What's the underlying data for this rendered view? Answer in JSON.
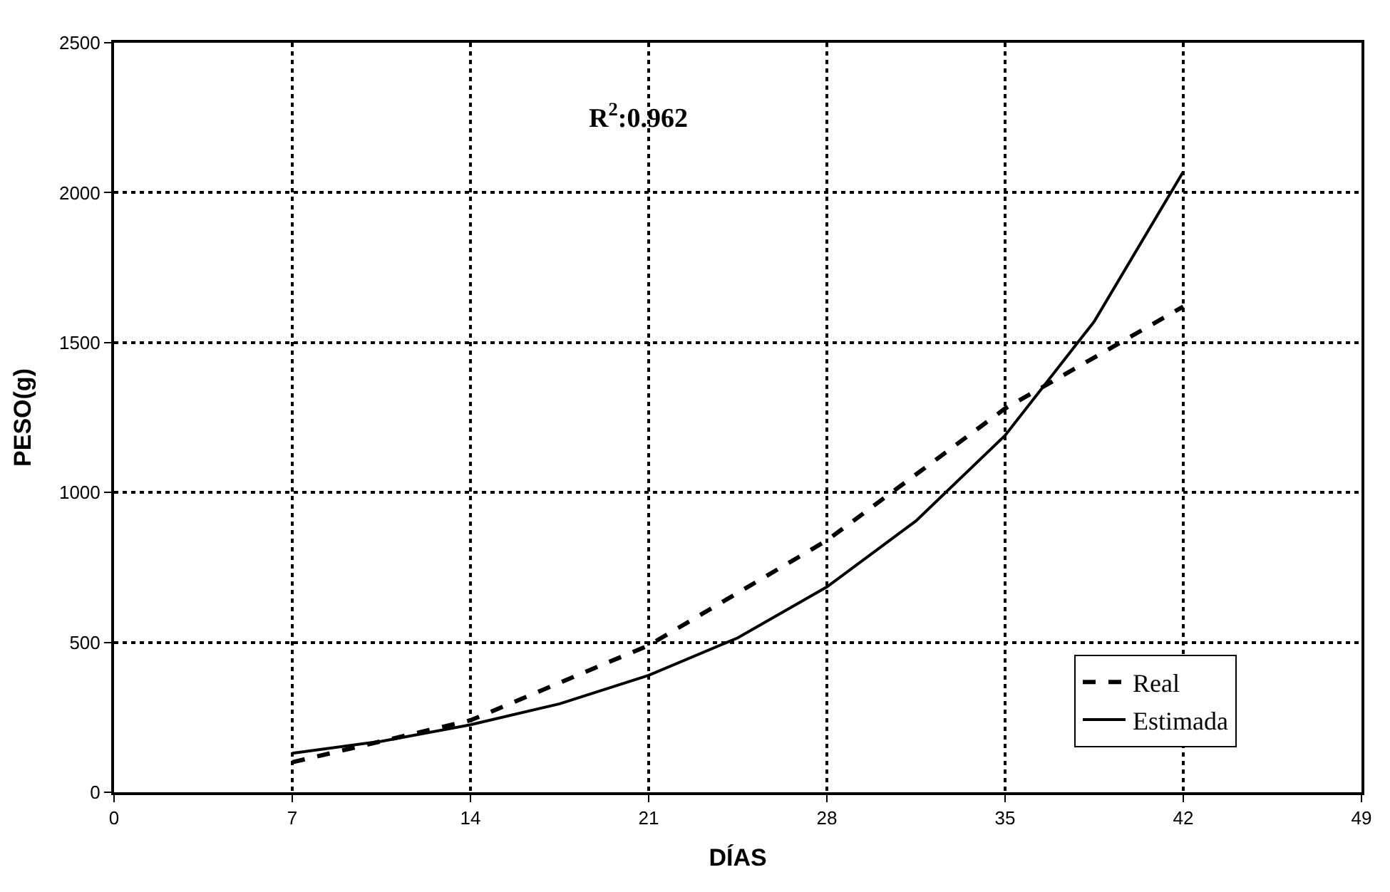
{
  "chart_data": {
    "type": "line",
    "xlabel": "DÍAS",
    "ylabel": "PESO(g)",
    "annotations": [
      "R$^{2}$:0.962"
    ],
    "series": [
      {
        "name": "Real",
        "color": "#000000",
        "line_style": "dashed",
        "x": [
          7,
          14,
          21,
          28,
          35,
          42
        ],
        "values": [
          100,
          240,
          490,
          840,
          1280,
          1620
        ]
      },
      {
        "name": "Estimada",
        "color": "#000000",
        "line_style": "solid",
        "x": [
          7,
          10.5,
          14,
          17.5,
          21,
          24.5,
          28,
          31.5,
          35,
          38.5,
          42
        ],
        "values": [
          130,
          170,
          225,
          295,
          390,
          515,
          685,
          905,
          1190,
          1570,
          2070
        ]
      }
    ],
    "xlim": [
      0,
      49
    ],
    "xticks": [
      0,
      7,
      14,
      21,
      28,
      35,
      42,
      49
    ],
    "ylim": [
      0,
      2500
    ],
    "yticks": [
      0,
      500,
      1000,
      1500,
      2000,
      2500
    ],
    "grid": true,
    "legend": "bottom right",
    "marker": "none"
  }
}
